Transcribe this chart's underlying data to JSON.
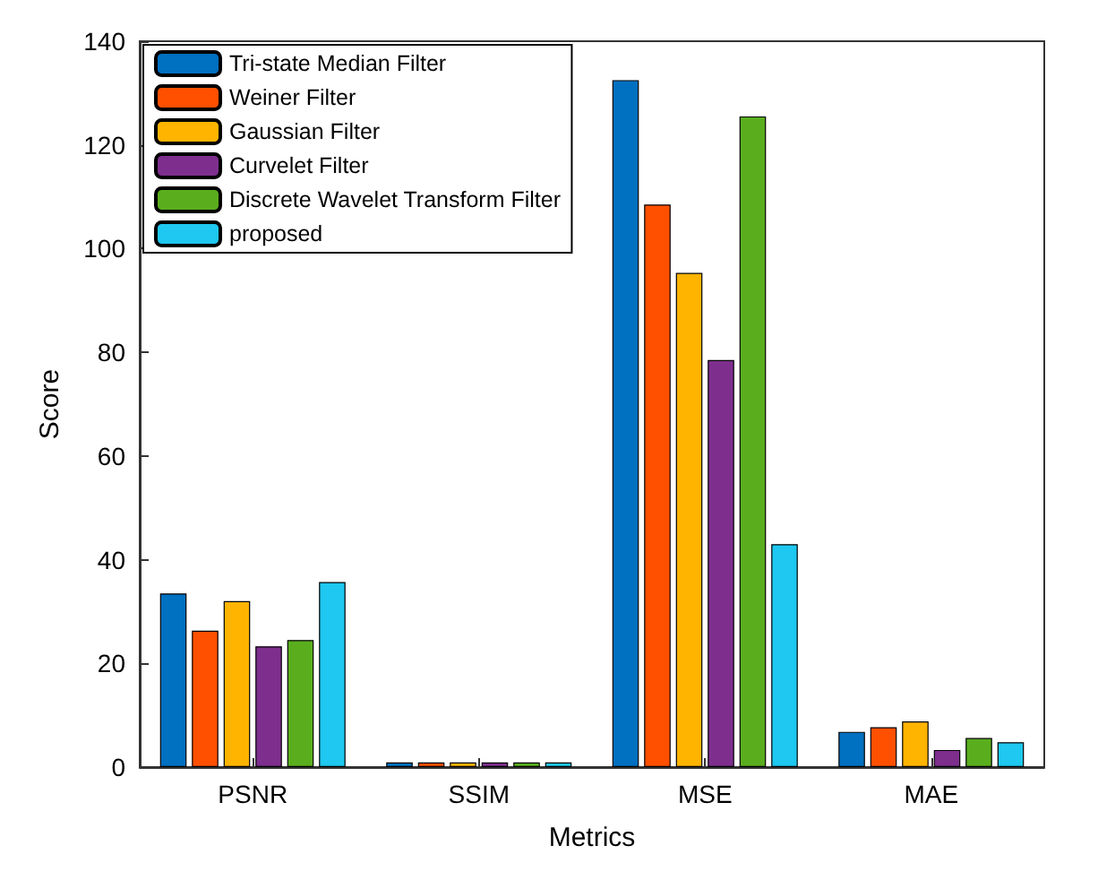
{
  "chart_data": {
    "type": "bar",
    "xlabel": "Metrics",
    "ylabel": "Score",
    "categories": [
      "PSNR",
      "SSIM",
      "MSE",
      "MAE"
    ],
    "series": [
      {
        "name": "Tri-state Median Filter",
        "color": "#0070c0",
        "values": [
          33.5,
          0.9,
          132.5,
          6.8
        ]
      },
      {
        "name": "Weiner Filter",
        "color": "#ff5000",
        "values": [
          26.3,
          0.9,
          108.5,
          7.7
        ]
      },
      {
        "name": "Gaussian Filter",
        "color": "#ffb400",
        "values": [
          32,
          0.9,
          95.3,
          8.8
        ]
      },
      {
        "name": "Curvelet Filter",
        "color": "#7e2f8e",
        "values": [
          23.3,
          0.9,
          78.5,
          3.3
        ]
      },
      {
        "name": "Discrete Wavelet Transform Filter",
        "color": "#5aae1e",
        "values": [
          24.5,
          0.9,
          125.5,
          5.6
        ]
      },
      {
        "name": "proposed",
        "color": "#1ec8f0",
        "values": [
          35.7,
          0.9,
          43,
          4.8
        ]
      }
    ],
    "ylim": [
      0,
      140
    ],
    "yticks": [
      0,
      20,
      40,
      60,
      80,
      100,
      120,
      140
    ],
    "grid": false,
    "legend": "top left"
  }
}
